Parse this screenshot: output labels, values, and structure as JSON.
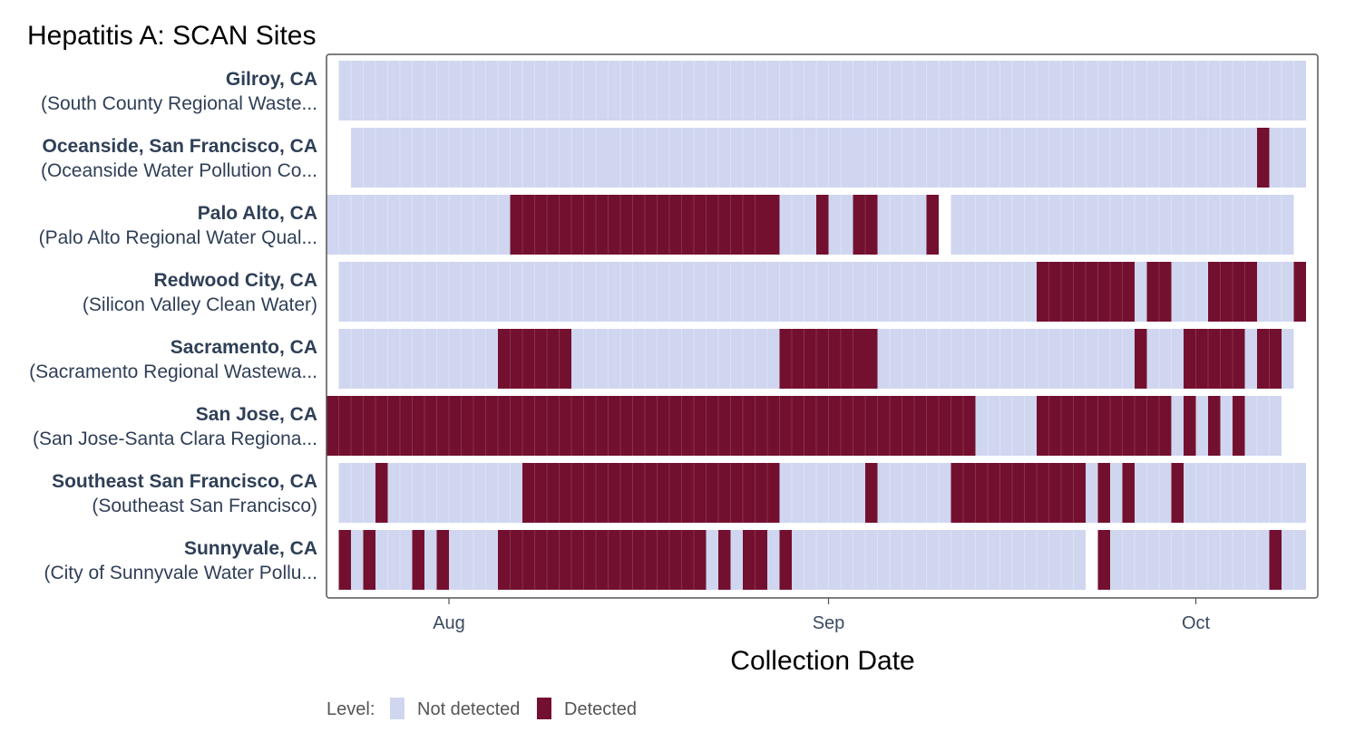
{
  "chart_data": {
    "type": "heatmap",
    "title": "Hepatitis A: SCAN Sites",
    "xlabel": "Collection Date",
    "ylabel": "",
    "x_ticks": [
      "Aug",
      "Sep",
      "Oct"
    ],
    "date_range": [
      "2023-07-22",
      "2023-10-09"
    ],
    "legend": {
      "title": "Level:",
      "placement": "bottom-left",
      "items": [
        {
          "label": "Not detected",
          "color": "#d0d6f0"
        },
        {
          "label": "Detected",
          "color": "#74102f"
        }
      ]
    },
    "rows": [
      {
        "name": "Gilroy, CA",
        "facility": "(South County Regional Waste...",
        "segments": [
          {
            "start": "2023-07-23",
            "end": "2023-10-09",
            "level": "Not detected"
          }
        ]
      },
      {
        "name": "Oceanside, San Francisco, CA",
        "facility": "(Oceanside Water Pollution Co...",
        "segments": [
          {
            "start": "2023-07-24",
            "end": "2023-07-26",
            "level": "Not detected"
          },
          {
            "start": "2023-07-27",
            "end": "2023-08-13",
            "level": "Not detected"
          },
          {
            "start": "2023-08-14",
            "end": "2023-09-02",
            "level": "Not detected"
          },
          {
            "start": "2023-09-03",
            "end": "2023-10-05",
            "level": "Not detected"
          },
          {
            "start": "2023-10-06",
            "end": "2023-10-06",
            "level": "Detected"
          },
          {
            "start": "2023-10-07",
            "end": "2023-10-09",
            "level": "Not detected"
          }
        ]
      },
      {
        "name": "Palo Alto, CA",
        "facility": "(Palo Alto Regional Water Qual...",
        "segments": [
          {
            "start": "2023-07-22",
            "end": "2023-08-05",
            "level": "Not detected"
          },
          {
            "start": "2023-08-06",
            "end": "2023-08-26",
            "level": "Detected"
          },
          {
            "start": "2023-08-27",
            "end": "2023-08-27",
            "level": "Detected"
          },
          {
            "start": "2023-08-28",
            "end": "2023-08-30",
            "level": "Not detected"
          },
          {
            "start": "2023-08-31",
            "end": "2023-08-31",
            "level": "Detected"
          },
          {
            "start": "2023-09-01",
            "end": "2023-09-03",
            "level": "Not detected"
          },
          {
            "start": "2023-09-03",
            "end": "2023-09-04",
            "level": "Detected"
          },
          {
            "start": "2023-09-05",
            "end": "2023-09-08",
            "level": "Not detected"
          },
          {
            "start": "2023-09-09",
            "end": "2023-09-09",
            "level": "Detected"
          },
          {
            "start": "2023-09-11",
            "end": "2023-10-08",
            "level": "Not detected"
          }
        ]
      },
      {
        "name": "Redwood City, CA",
        "facility": "(Silicon Valley Clean Water)",
        "segments": [
          {
            "start": "2023-07-23",
            "end": "2023-09-17",
            "level": "Not detected"
          },
          {
            "start": "2023-09-18",
            "end": "2023-09-25",
            "level": "Detected"
          },
          {
            "start": "2023-09-26",
            "end": "2023-09-26",
            "level": "Not detected"
          },
          {
            "start": "2023-09-27",
            "end": "2023-09-28",
            "level": "Detected"
          },
          {
            "start": "2023-09-29",
            "end": "2023-10-02",
            "level": "Not detected"
          },
          {
            "start": "2023-10-02",
            "end": "2023-10-05",
            "level": "Detected"
          },
          {
            "start": "2023-10-06",
            "end": "2023-10-08",
            "level": "Not detected"
          },
          {
            "start": "2023-10-09",
            "end": "2023-10-09",
            "level": "Detected"
          }
        ]
      },
      {
        "name": "Sacramento, CA",
        "facility": "(Sacramento Regional Wastewa...",
        "segments": [
          {
            "start": "2023-07-23",
            "end": "2023-08-04",
            "level": "Not detected"
          },
          {
            "start": "2023-08-05",
            "end": "2023-08-10",
            "level": "Detected"
          },
          {
            "start": "2023-08-11",
            "end": "2023-08-27",
            "level": "Not detected"
          },
          {
            "start": "2023-08-28",
            "end": "2023-09-03",
            "level": "Detected"
          },
          {
            "start": "2023-09-04",
            "end": "2023-09-04",
            "level": "Detected"
          },
          {
            "start": "2023-09-05",
            "end": "2023-09-25",
            "level": "Not detected"
          },
          {
            "start": "2023-09-26",
            "end": "2023-09-26",
            "level": "Detected"
          },
          {
            "start": "2023-09-27",
            "end": "2023-09-29",
            "level": "Not detected"
          },
          {
            "start": "2023-09-30",
            "end": "2023-10-04",
            "level": "Detected"
          },
          {
            "start": "2023-10-05",
            "end": "2023-10-05",
            "level": "Not detected"
          },
          {
            "start": "2023-10-06",
            "end": "2023-10-07",
            "level": "Detected"
          },
          {
            "start": "2023-10-08",
            "end": "2023-10-08",
            "level": "Not detected"
          }
        ]
      },
      {
        "name": "San Jose, CA",
        "facility": "(San Jose-Santa Clara Regiona...",
        "segments": [
          {
            "start": "2023-07-22",
            "end": "2023-09-12",
            "level": "Detected"
          },
          {
            "start": "2023-09-13",
            "end": "2023-09-17",
            "level": "Not detected"
          },
          {
            "start": "2023-09-18",
            "end": "2023-09-29",
            "level": "Detected"
          },
          {
            "start": "2023-09-29",
            "end": "2023-09-29",
            "level": "Not detected"
          },
          {
            "start": "2023-09-30",
            "end": "2023-09-30",
            "level": "Detected"
          },
          {
            "start": "2023-10-01",
            "end": "2023-10-01",
            "level": "Not detected"
          },
          {
            "start": "2023-10-02",
            "end": "2023-10-02",
            "level": "Detected"
          },
          {
            "start": "2023-10-03",
            "end": "2023-10-03",
            "level": "Not detected"
          },
          {
            "start": "2023-10-04",
            "end": "2023-10-04",
            "level": "Detected"
          },
          {
            "start": "2023-10-05",
            "end": "2023-10-07",
            "level": "Not detected"
          }
        ]
      },
      {
        "name": "Southeast San Francisco, CA",
        "facility": "(Southeast San Francisco)",
        "segments": [
          {
            "start": "2023-07-23",
            "end": "2023-07-25",
            "level": "Not detected"
          },
          {
            "start": "2023-07-26",
            "end": "2023-07-26",
            "level": "Detected"
          },
          {
            "start": "2023-07-27",
            "end": "2023-08-06",
            "level": "Not detected"
          },
          {
            "start": "2023-08-07",
            "end": "2023-08-27",
            "level": "Detected"
          },
          {
            "start": "2023-08-28",
            "end": "2023-09-03",
            "level": "Not detected"
          },
          {
            "start": "2023-09-04",
            "end": "2023-09-04",
            "level": "Detected"
          },
          {
            "start": "2023-09-05",
            "end": "2023-09-10",
            "level": "Not detected"
          },
          {
            "start": "2023-09-11",
            "end": "2023-09-21",
            "level": "Detected"
          },
          {
            "start": "2023-09-22",
            "end": "2023-09-22",
            "level": "Not detected"
          },
          {
            "start": "2023-09-23",
            "end": "2023-09-23",
            "level": "Detected"
          },
          {
            "start": "2023-09-24",
            "end": "2023-09-24",
            "level": "Not detected"
          },
          {
            "start": "2023-09-25",
            "end": "2023-09-25",
            "level": "Detected"
          },
          {
            "start": "2023-09-26",
            "end": "2023-09-28",
            "level": "Not detected"
          },
          {
            "start": "2023-09-29",
            "end": "2023-09-29",
            "level": "Detected"
          },
          {
            "start": "2023-09-30",
            "end": "2023-10-09",
            "level": "Not detected"
          }
        ]
      },
      {
        "name": "Sunnyvale, CA",
        "facility": "(City of Sunnyvale Water Pollu...",
        "segments": [
          {
            "start": "2023-07-23",
            "end": "2023-07-23",
            "level": "Detected"
          },
          {
            "start": "2023-07-24",
            "end": "2023-07-24",
            "level": "Not detected"
          },
          {
            "start": "2023-07-25",
            "end": "2023-07-25",
            "level": "Detected"
          },
          {
            "start": "2023-07-26",
            "end": "2023-07-28",
            "level": "Not detected"
          },
          {
            "start": "2023-07-29",
            "end": "2023-07-29",
            "level": "Detected"
          },
          {
            "start": "2023-07-30",
            "end": "2023-07-30",
            "level": "Not detected"
          },
          {
            "start": "2023-07-31",
            "end": "2023-07-31",
            "level": "Detected"
          },
          {
            "start": "2023-08-01",
            "end": "2023-08-04",
            "level": "Not detected"
          },
          {
            "start": "2023-08-05",
            "end": "2023-08-21",
            "level": "Detected"
          },
          {
            "start": "2023-08-22",
            "end": "2023-08-22",
            "level": "Not detected"
          },
          {
            "start": "2023-08-23",
            "end": "2023-08-23",
            "level": "Detected"
          },
          {
            "start": "2023-08-24",
            "end": "2023-08-24",
            "level": "Not detected"
          },
          {
            "start": "2023-08-25",
            "end": "2023-08-26",
            "level": "Detected"
          },
          {
            "start": "2023-08-27",
            "end": "2023-08-27",
            "level": "Not detected"
          },
          {
            "start": "2023-08-28",
            "end": "2023-08-28",
            "level": "Detected"
          },
          {
            "start": "2023-08-29",
            "end": "2023-09-21",
            "level": "Not detected"
          },
          {
            "start": "2023-09-23",
            "end": "2023-09-23",
            "level": "Detected"
          },
          {
            "start": "2023-09-24",
            "end": "2023-10-06",
            "level": "Not detected"
          },
          {
            "start": "2023-10-07",
            "end": "2023-10-07",
            "level": "Detected"
          },
          {
            "start": "2023-10-08",
            "end": "2023-10-09",
            "level": "Not detected"
          }
        ]
      }
    ]
  }
}
